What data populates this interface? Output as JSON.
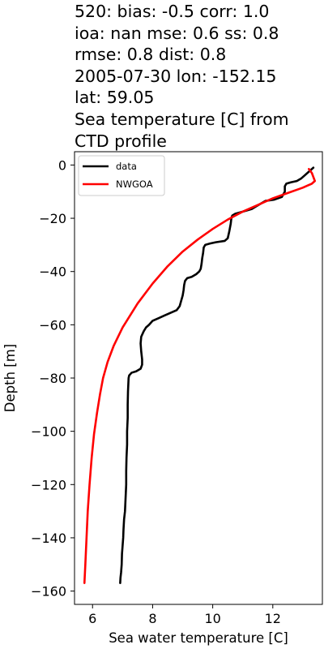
{
  "chart_data": {
    "type": "line",
    "title_lines": [
      "520: bias: -0.5  corr: 1.0",
      "ioa: nan  mse: 0.6  ss: 0.8",
      "rmse: 0.8  dist: 0.8",
      "2005-07-30 lon: -152.15",
      "lat: 59.05",
      "Sea temperature [C] from",
      "CTD profile"
    ],
    "xlabel": "Sea water temperature [C]",
    "ylabel": "Depth [m]",
    "xlim": [
      5.4,
      13.65
    ],
    "ylim": [
      -165,
      5
    ],
    "xticks": [
      6,
      8,
      10,
      12
    ],
    "yticks": [
      0,
      -20,
      -40,
      -60,
      -80,
      -100,
      -120,
      -140,
      -160
    ],
    "legend_position": "upper-left",
    "series": [
      {
        "name": "data",
        "color": "#000000",
        "points": [
          [
            13.35,
            -1
          ],
          [
            13.2,
            -2.5
          ],
          [
            13.05,
            -4
          ],
          [
            12.95,
            -5
          ],
          [
            12.8,
            -6
          ],
          [
            12.6,
            -6.5
          ],
          [
            12.45,
            -7
          ],
          [
            12.4,
            -8
          ],
          [
            12.4,
            -10
          ],
          [
            12.3,
            -12
          ],
          [
            12.05,
            -13
          ],
          [
            11.75,
            -13.5
          ],
          [
            11.6,
            -14.5
          ],
          [
            11.45,
            -15.5
          ],
          [
            11.3,
            -16.5
          ],
          [
            11.0,
            -17.5
          ],
          [
            10.75,
            -18.3
          ],
          [
            10.65,
            -19
          ],
          [
            10.62,
            -20
          ],
          [
            10.6,
            -22
          ],
          [
            10.55,
            -25
          ],
          [
            10.5,
            -27.5
          ],
          [
            10.4,
            -28.5
          ],
          [
            10.1,
            -29
          ],
          [
            9.9,
            -29.5
          ],
          [
            9.75,
            -30
          ],
          [
            9.7,
            -31
          ],
          [
            9.68,
            -33
          ],
          [
            9.65,
            -35
          ],
          [
            9.63,
            -37
          ],
          [
            9.6,
            -39
          ],
          [
            9.55,
            -40
          ],
          [
            9.45,
            -41
          ],
          [
            9.3,
            -42
          ],
          [
            9.15,
            -42.5
          ],
          [
            9.08,
            -43.5
          ],
          [
            9.05,
            -45
          ],
          [
            9.03,
            -47
          ],
          [
            9.0,
            -49
          ],
          [
            8.95,
            -51
          ],
          [
            8.9,
            -53
          ],
          [
            8.8,
            -54.5
          ],
          [
            8.6,
            -55.5
          ],
          [
            8.4,
            -56.5
          ],
          [
            8.2,
            -57.5
          ],
          [
            8.0,
            -58.5
          ],
          [
            7.88,
            -60
          ],
          [
            7.78,
            -61
          ],
          [
            7.7,
            -62.5
          ],
          [
            7.62,
            -64.5
          ],
          [
            7.6,
            -67
          ],
          [
            7.62,
            -70
          ],
          [
            7.65,
            -73
          ],
          [
            7.65,
            -75
          ],
          [
            7.6,
            -76.5
          ],
          [
            7.45,
            -77.5
          ],
          [
            7.3,
            -78
          ],
          [
            7.22,
            -79
          ],
          [
            7.2,
            -80
          ],
          [
            7.18,
            -85
          ],
          [
            7.17,
            -90
          ],
          [
            7.17,
            -95
          ],
          [
            7.15,
            -100
          ],
          [
            7.15,
            -105
          ],
          [
            7.13,
            -110
          ],
          [
            7.12,
            -115
          ],
          [
            7.12,
            -120
          ],
          [
            7.1,
            -125
          ],
          [
            7.08,
            -130
          ],
          [
            7.05,
            -133
          ],
          [
            7.03,
            -137
          ],
          [
            7.02,
            -140
          ],
          [
            7.0,
            -143
          ],
          [
            6.98,
            -146
          ],
          [
            6.97,
            -150
          ],
          [
            6.95,
            -153
          ],
          [
            6.93,
            -155
          ],
          [
            6.92,
            -157
          ]
        ]
      },
      {
        "name": "NWGOA",
        "color": "#ff0000",
        "points": [
          [
            13.2,
            -1.5
          ],
          [
            13.3,
            -3
          ],
          [
            13.35,
            -4.5
          ],
          [
            13.4,
            -6
          ],
          [
            13.3,
            -7
          ],
          [
            13.0,
            -8.5
          ],
          [
            12.5,
            -10.5
          ],
          [
            12.0,
            -12.5
          ],
          [
            11.5,
            -15
          ],
          [
            11.0,
            -17.5
          ],
          [
            10.5,
            -20.5
          ],
          [
            10.0,
            -24
          ],
          [
            9.5,
            -28
          ],
          [
            9.0,
            -32.5
          ],
          [
            8.5,
            -38
          ],
          [
            8.0,
            -44.5
          ],
          [
            7.5,
            -52
          ],
          [
            7.0,
            -61
          ],
          [
            6.7,
            -68
          ],
          [
            6.5,
            -74
          ],
          [
            6.35,
            -80
          ],
          [
            6.25,
            -86
          ],
          [
            6.15,
            -93
          ],
          [
            6.05,
            -101
          ],
          [
            5.97,
            -110
          ],
          [
            5.9,
            -120
          ],
          [
            5.84,
            -130
          ],
          [
            5.8,
            -140
          ],
          [
            5.76,
            -150
          ],
          [
            5.73,
            -157
          ]
        ]
      }
    ]
  }
}
